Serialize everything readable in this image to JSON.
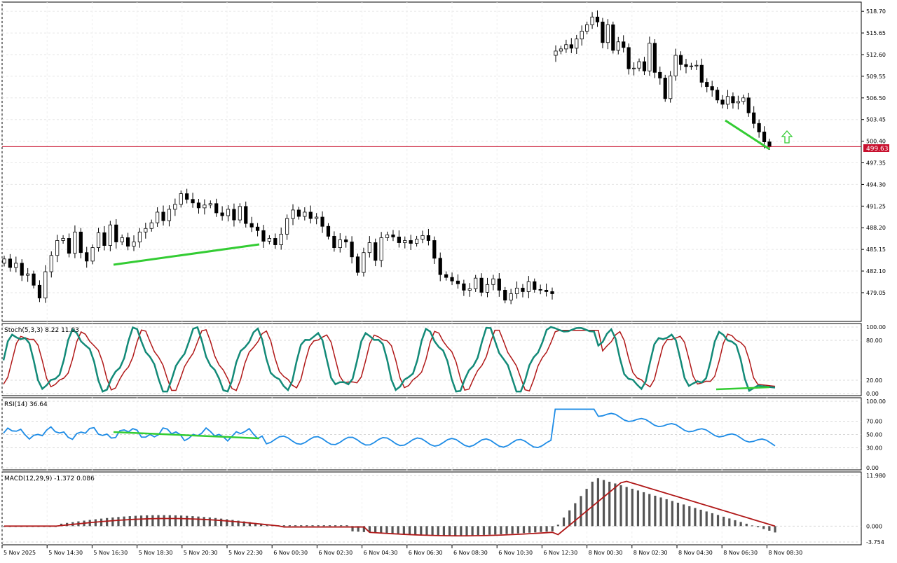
{
  "chart_data": {
    "type": "candlestick",
    "symbol_price": "499.63",
    "price_axis": {
      "ticks": [
        "518.70",
        "515.65",
        "512.60",
        "509.55",
        "506.50",
        "503.45",
        "500.40",
        "497.35",
        "494.30",
        "491.25",
        "488.20",
        "485.15",
        "482.10",
        "479.05"
      ],
      "range": [
        475.0,
        520.0
      ]
    },
    "time_axis": {
      "labels": [
        "5 Nov 2025",
        "5 Nov 14:30",
        "5 Nov 16:30",
        "5 Nov 18:30",
        "5 Nov 20:30",
        "5 Nov 22:30",
        "6 Nov 00:30",
        "6 Nov 02:30",
        "6 Nov 04:30",
        "6 Nov 06:30",
        "6 Nov 08:30",
        "6 Nov 10:30",
        "6 Nov 12:30",
        "8 Nov 00:30",
        "8 Nov 02:30",
        "8 Nov 04:30",
        "8 Nov 06:30",
        "8 Nov 08:30"
      ]
    },
    "candles_closes": [
      483.8,
      482.6,
      483.2,
      481.5,
      481.7,
      480.1,
      478.3,
      482.0,
      484.3,
      486.4,
      486.7,
      484.6,
      487.6,
      484.7,
      483.5,
      485.4,
      487.5,
      485.7,
      488.6,
      486.2,
      486.8,
      485.6,
      486.2,
      487.6,
      488.1,
      488.9,
      490.4,
      489.2,
      490.8,
      491.5,
      493.0,
      492.2,
      491.7,
      491.0,
      491.4,
      491.6,
      490.3,
      489.9,
      490.8,
      489.3,
      491.2,
      488.8,
      488.3,
      487.8,
      486.3,
      486.7,
      485.8,
      487.3,
      489.5,
      490.7,
      489.8,
      490.4,
      489.5,
      489.7,
      488.4,
      487.0,
      485.4,
      486.5,
      486.2,
      484.1,
      481.9,
      484.7,
      486.1,
      483.6,
      486.8,
      487.2,
      486.9,
      486.1,
      486.4,
      486.0,
      486.6,
      487.1,
      486.4,
      483.9,
      481.6,
      481.2,
      480.7,
      480.3,
      479.4,
      479.6,
      481.1,
      479.1,
      480.2,
      481.0,
      479.4,
      478.0,
      478.9,
      479.7,
      479.2,
      480.6,
      479.5,
      479.4,
      479.2,
      478.9,
      513.1,
      513.4,
      514.0,
      513.5,
      514.8,
      515.9,
      516.8,
      517.9,
      517.2,
      514.3,
      516.8,
      513.2,
      514.4,
      513.6,
      510.6,
      510.7,
      511.6,
      510.3,
      514.2,
      510.1,
      509.3,
      506.4,
      509.6,
      512.5,
      511.2,
      510.9,
      511.0,
      511.1,
      508.7,
      508.1,
      507.6,
      506.2,
      505.6,
      506.7,
      505.8,
      506.0,
      506.5,
      504.4,
      502.9,
      501.7,
      500.3,
      499.63
    ],
    "stochastic": {
      "label": "Stoch(5,3,3) 8.22 11.03",
      "ticks": [
        "100.00",
        "80.00",
        "20.00",
        "0.00"
      ],
      "k": 8.22,
      "d": 11.03
    },
    "rsi": {
      "label": "RSI(14) 36.64",
      "ticks": [
        "100.00",
        "70.00",
        "50.00",
        "30.00",
        "0.00"
      ],
      "value": 36.64
    },
    "macd": {
      "label": "MACD(12,29,9) -1.372 0.086",
      "ticks": [
        "11.980",
        "0.000",
        "-3.754"
      ],
      "macd": -1.372,
      "signal": 0.086
    },
    "colors": {
      "bull_body": "#ffffff",
      "bear_body": "#000000",
      "price_line": "#c8102e",
      "divergence": "#33cc33",
      "stoch_k": "#138a78",
      "stoch_d": "#b01818",
      "rsi": "#1e8ce6",
      "macd_hist": "#555555",
      "macd_signal": "#b01818",
      "arrow": "#33cc33"
    }
  }
}
